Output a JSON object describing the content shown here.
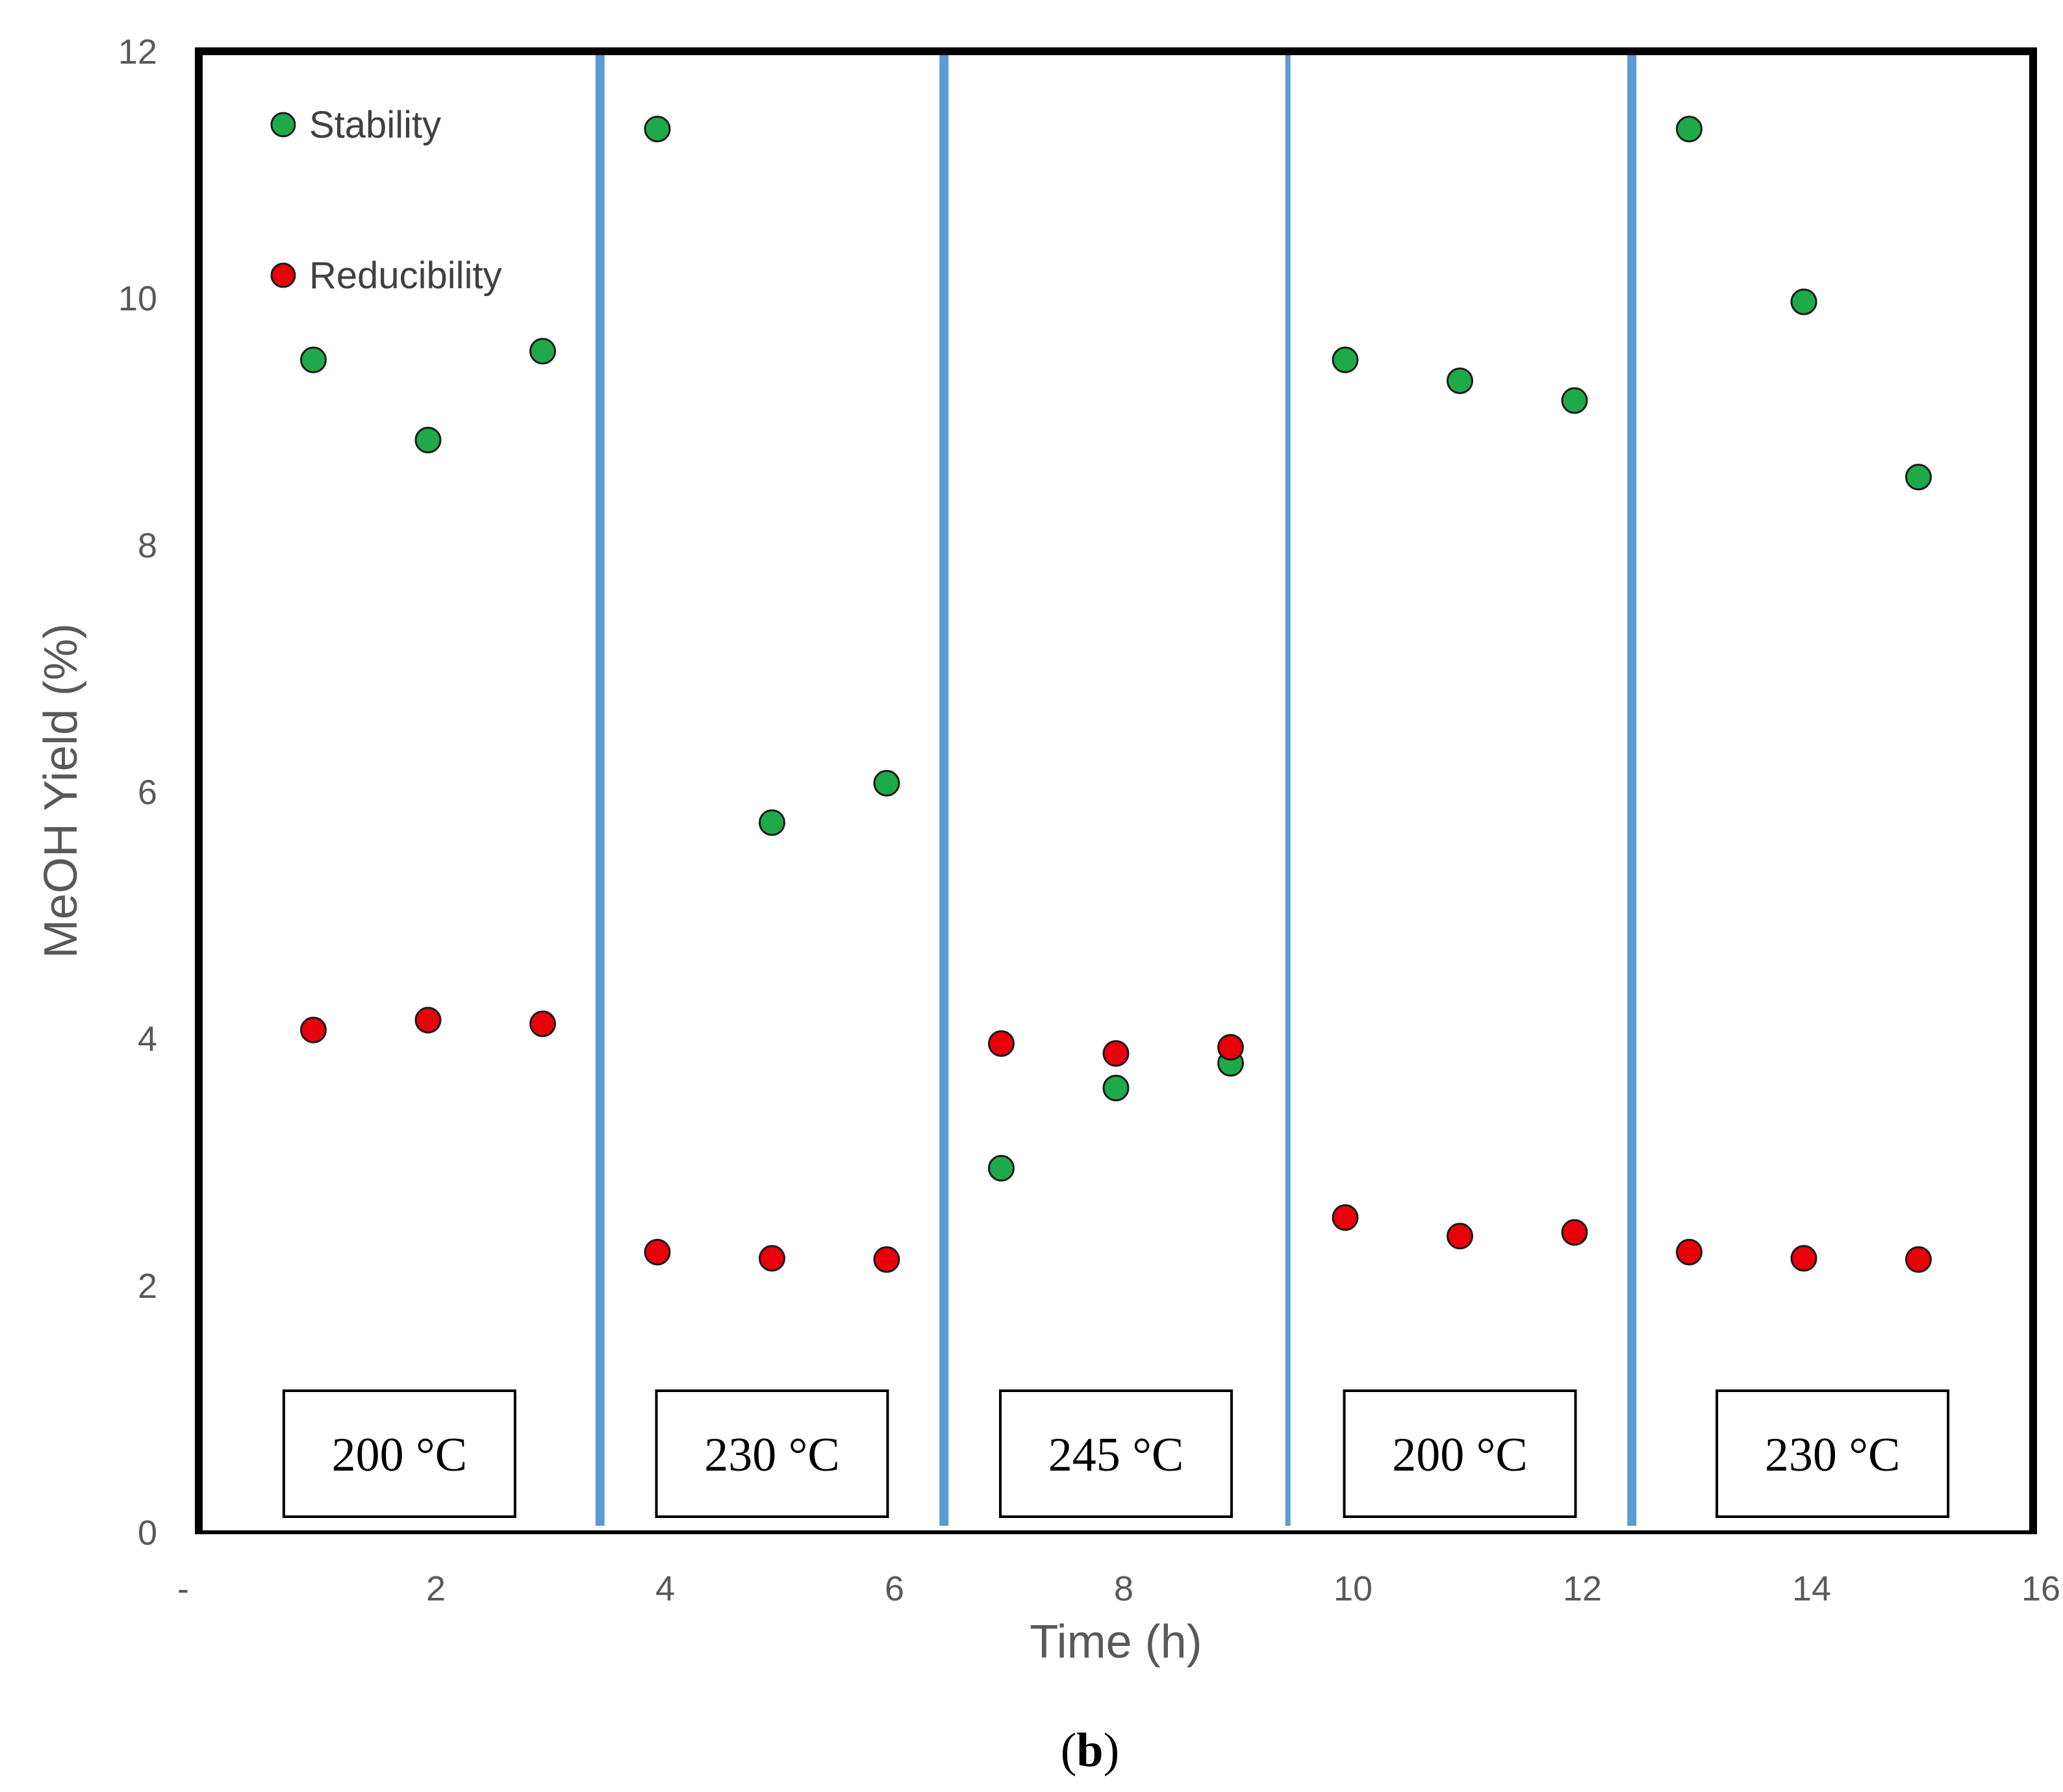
{
  "chart_data": {
    "type": "scatter",
    "title": "",
    "panel_label": "(b)",
    "panel_label_parts": [
      "(",
      "b",
      ")"
    ],
    "xlabel": "Time (h)",
    "ylabel": "MeOH Yield (%)",
    "xlim": [
      0,
      16
    ],
    "ylim": [
      0,
      12
    ],
    "x_ticks": [
      0,
      2,
      4,
      6,
      8,
      10,
      12,
      14,
      16
    ],
    "x_tick_labels": [
      "-",
      "2",
      "4",
      "6",
      "8",
      "10",
      "12",
      "14",
      "16"
    ],
    "y_ticks": [
      0,
      2,
      4,
      6,
      8,
      10,
      12
    ],
    "y_tick_labels": [
      "0",
      "2",
      "4",
      "6",
      "8",
      "10",
      "12"
    ],
    "grid": false,
    "legend_position": "top-left",
    "series": [
      {
        "name": "Stability",
        "color": "#1faa4a",
        "x": [
          1,
          2,
          3,
          4,
          5,
          6,
          7,
          8,
          9,
          10,
          11,
          12,
          13,
          14,
          15
        ],
        "values": [
          9.5,
          8.85,
          9.57,
          11.37,
          5.75,
          6.07,
          2.95,
          3.6,
          3.8,
          9.5,
          9.33,
          9.17,
          11.37,
          9.97,
          8.55
        ]
      },
      {
        "name": "Reducibility",
        "color": "#e8000b",
        "x": [
          1,
          2,
          3,
          4,
          5,
          6,
          7,
          8,
          9,
          10,
          11,
          12,
          13,
          14,
          15
        ],
        "values": [
          4.07,
          4.15,
          4.12,
          2.27,
          2.22,
          2.21,
          3.96,
          3.88,
          3.93,
          2.55,
          2.4,
          2.43,
          2.27,
          2.22,
          2.21
        ]
      }
    ],
    "separators_x": [
      3.5,
      6.5,
      9.5,
      12.5
    ],
    "separator_color": "#5b9bd5",
    "temperature_regions": [
      {
        "label": "200 °C",
        "x_start": 0,
        "x_end": 3.5
      },
      {
        "label": "230 °C",
        "x_start": 3.5,
        "x_end": 6.5
      },
      {
        "label": "245 °C",
        "x_start": 6.5,
        "x_end": 9.5
      },
      {
        "label": "200 °C",
        "x_start": 9.5,
        "x_end": 12.5
      },
      {
        "label": "230 °C",
        "x_start": 12.5,
        "x_end": 16
      }
    ]
  }
}
